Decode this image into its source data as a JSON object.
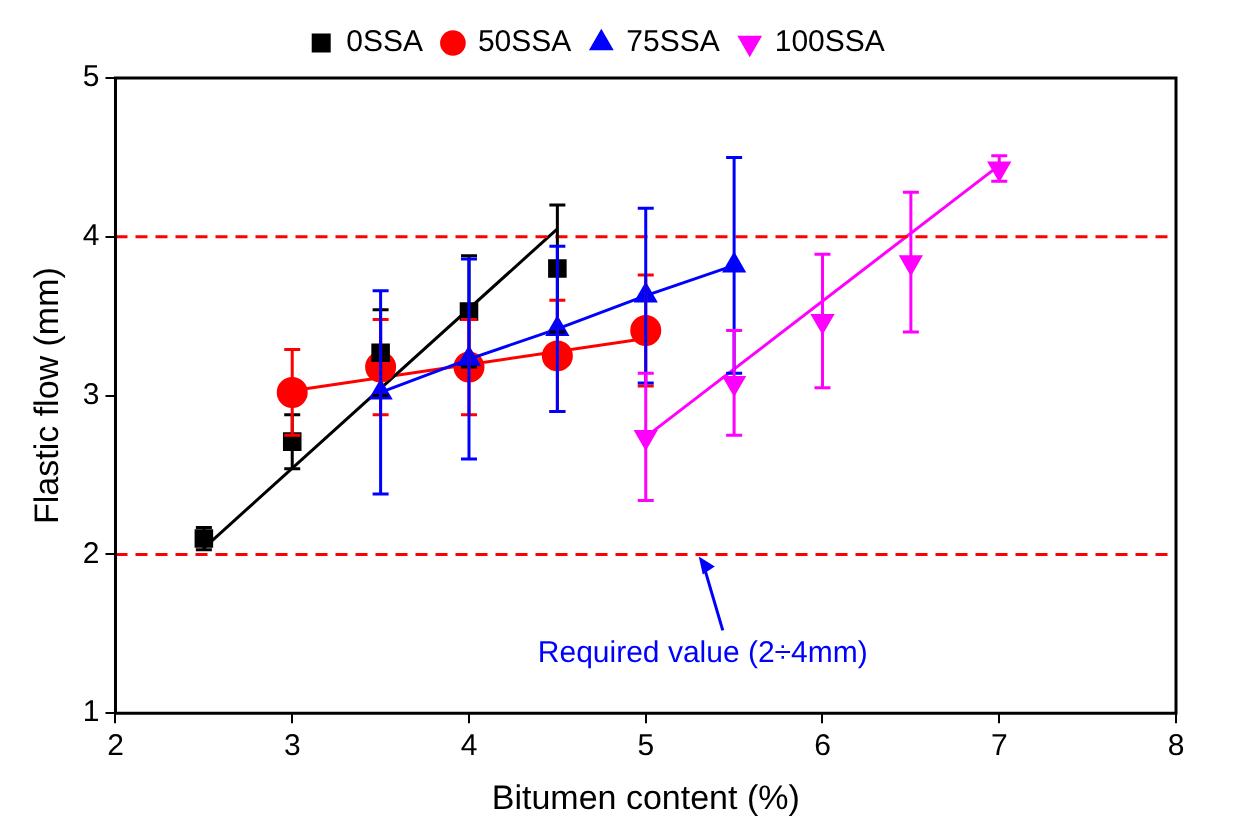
{
  "chart_data": {
    "type": "scatter",
    "xlabel": "Bitumen content (%)",
    "ylabel": "Flastic flow (mm)",
    "xlim": [
      2,
      8
    ],
    "xticks": [
      2,
      3,
      4,
      5,
      6,
      7,
      8
    ],
    "ylim": [
      1,
      5
    ],
    "yticks": [
      1,
      2,
      3,
      4,
      5
    ],
    "grid": false,
    "legend": "top",
    "series": [
      {
        "name": "0SSA",
        "color": "#000000",
        "marker": "square",
        "x": [
          2.5,
          3,
          3.5,
          4,
          4.5
        ],
        "values": [
          2.1,
          2.71,
          3.27,
          3.53,
          3.8
        ],
        "errors": [
          0.07,
          0.17,
          0.27,
          0.35,
          0.4
        ]
      },
      {
        "name": "50SSA",
        "color": "#ff0000",
        "marker": "circle",
        "x": [
          3,
          3.5,
          4,
          4.5,
          5
        ],
        "values": [
          3.02,
          3.18,
          3.18,
          3.25,
          3.41
        ],
        "errors": [
          0.27,
          0.3,
          0.3,
          0.35,
          0.35
        ]
      },
      {
        "name": "75SSA",
        "type": "line",
        "color": "#0000ff",
        "marker": "triangle",
        "x": [
          3.5,
          4,
          4.5,
          5,
          5.5
        ],
        "values": [
          3.02,
          3.23,
          3.42,
          3.63,
          3.82
        ],
        "errors": [
          0.64,
          0.63,
          0.52,
          0.55,
          0.68
        ]
      },
      {
        "name": "100SSA",
        "color": "#ff00ff",
        "marker": "triangle-down",
        "x": [
          5,
          5.5,
          6,
          6.5,
          7
        ],
        "values": [
          2.74,
          3.08,
          3.47,
          3.84,
          4.43
        ],
        "errors": [
          0.4,
          0.33,
          0.42,
          0.44,
          0.08
        ]
      },
      {
        "type": "line",
        "color": "#000000",
        "x": [
          2.5,
          4.5
        ],
        "values": [
          2.04,
          4.05
        ]
      },
      {
        "type": "line",
        "color": "#ff0000",
        "x": [
          3,
          5
        ],
        "values": [
          3.03,
          3.36
        ]
      },
      {
        "type": "line",
        "color": "#ff00ff",
        "x": [
          5,
          7
        ],
        "values": [
          2.74,
          4.45
        ]
      }
    ],
    "ref_lines": [
      {
        "axis": "y",
        "value": 2,
        "color": "#ff0000",
        "line_style": "dashed"
      },
      {
        "axis": "y",
        "value": 4,
        "color": "#ff0000",
        "line_style": "dashed"
      }
    ],
    "annotations": [
      {
        "text": "Required value (2÷4mm)",
        "x": 5.3,
        "y": 2
      }
    ]
  }
}
